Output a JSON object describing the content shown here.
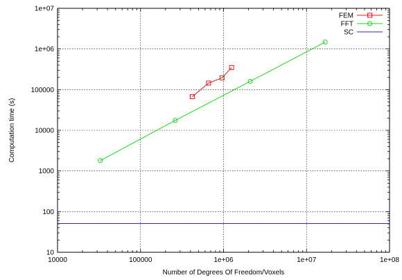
{
  "chart_data": {
    "type": "line",
    "xlabel": "Number of Degrees Of Freedom/Voxels",
    "ylabel": "Computation time (s)",
    "xscale": "log",
    "yscale": "log",
    "xlim": [
      10000,
      100000000
    ],
    "ylim": [
      10,
      10000000
    ],
    "grid": true,
    "legend_position": "top-right",
    "x_ticks": [
      10000,
      100000,
      1000000,
      10000000,
      100000000
    ],
    "x_tick_labels": [
      "10000",
      "100000",
      "1e+06",
      "1e+07",
      "1e+08"
    ],
    "y_ticks": [
      10,
      100,
      1000,
      10000,
      100000,
      1000000,
      10000000
    ],
    "y_tick_labels": [
      "10",
      "100",
      "1000",
      "10000",
      "100000",
      "1e+06",
      "1e+07"
    ],
    "series": [
      {
        "name": "FEM",
        "color": "#e8191b",
        "marker": "square",
        "x": [
          420000,
          660000,
          960000,
          1250000
        ],
        "y": [
          67000,
          145000,
          195000,
          350000
        ]
      },
      {
        "name": "FFT",
        "color": "#1ed21e",
        "marker": "circle",
        "x": [
          32768,
          262144,
          2097152,
          16777216
        ],
        "y": [
          1800,
          17500,
          160000,
          1480000
        ]
      },
      {
        "name": "SC",
        "color": "#2a2ab0",
        "marker": "none",
        "x": [
          10000,
          100000000
        ],
        "y": [
          51,
          51
        ]
      }
    ]
  }
}
